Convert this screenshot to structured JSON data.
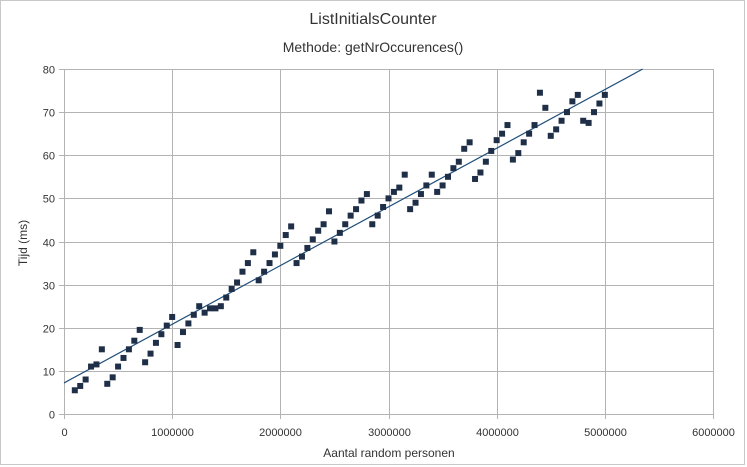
{
  "chart_data": {
    "type": "scatter",
    "title": "ListInitialsCounter",
    "subtitle": "Methode: getNrOccurences()",
    "xlabel": "Aantal random personen",
    "ylabel": "Tijd (ms)",
    "xlim": [
      0,
      6000000
    ],
    "ylim": [
      0,
      80
    ],
    "x_ticks": [
      0,
      1000000,
      2000000,
      3000000,
      4000000,
      5000000,
      6000000
    ],
    "x_tick_labels": [
      "0",
      "1000000",
      "2000000",
      "3000000",
      "4000000",
      "5000000",
      "6000000"
    ],
    "y_ticks": [
      0,
      10,
      20,
      30,
      40,
      50,
      60,
      70,
      80
    ],
    "y_tick_labels": [
      "0",
      "10",
      "20",
      "30",
      "40",
      "50",
      "60",
      "70",
      "80"
    ],
    "grid": true,
    "legend": false,
    "colors": {
      "points": "#1f2f48",
      "trendline": "#1f4e79",
      "grid": "#b3b3b3",
      "axis": "#b3b3b3"
    },
    "trendline": {
      "x": [
        0,
        5350000
      ],
      "y": [
        7.2,
        80
      ]
    },
    "points": [
      [
        100000,
        5.5
      ],
      [
        150000,
        6.5
      ],
      [
        200000,
        8
      ],
      [
        250000,
        11
      ],
      [
        300000,
        11.5
      ],
      [
        350000,
        15
      ],
      [
        400000,
        7
      ],
      [
        450000,
        8.5
      ],
      [
        500000,
        11
      ],
      [
        550000,
        13
      ],
      [
        600000,
        15
      ],
      [
        650000,
        17
      ],
      [
        700000,
        19.5
      ],
      [
        750000,
        12
      ],
      [
        800000,
        14
      ],
      [
        850000,
        16.5
      ],
      [
        900000,
        18.5
      ],
      [
        950000,
        20.5
      ],
      [
        1000000,
        22.5
      ],
      [
        1050000,
        16
      ],
      [
        1100000,
        19
      ],
      [
        1150000,
        21
      ],
      [
        1200000,
        23
      ],
      [
        1250000,
        25
      ],
      [
        1300000,
        23.5
      ],
      [
        1350000,
        24.5
      ],
      [
        1400000,
        24.5
      ],
      [
        1450000,
        25
      ],
      [
        1500000,
        27
      ],
      [
        1550000,
        29
      ],
      [
        1600000,
        30.5
      ],
      [
        1650000,
        33
      ],
      [
        1700000,
        35
      ],
      [
        1750000,
        37.5
      ],
      [
        1800000,
        31
      ],
      [
        1850000,
        33
      ],
      [
        1900000,
        35
      ],
      [
        1950000,
        37
      ],
      [
        2000000,
        39
      ],
      [
        2050000,
        41.5
      ],
      [
        2100000,
        43.5
      ],
      [
        2150000,
        35
      ],
      [
        2200000,
        36.5
      ],
      [
        2250000,
        38.5
      ],
      [
        2300000,
        40.5
      ],
      [
        2350000,
        42.5
      ],
      [
        2400000,
        44
      ],
      [
        2450000,
        47
      ],
      [
        2500000,
        40
      ],
      [
        2550000,
        42
      ],
      [
        2600000,
        44
      ],
      [
        2650000,
        46
      ],
      [
        2700000,
        47.5
      ],
      [
        2750000,
        49.5
      ],
      [
        2800000,
        51
      ],
      [
        2850000,
        44
      ],
      [
        2900000,
        46
      ],
      [
        2950000,
        48
      ],
      [
        3000000,
        50
      ],
      [
        3050000,
        51.5
      ],
      [
        3100000,
        52.5
      ],
      [
        3150000,
        55.5
      ],
      [
        3200000,
        47.5
      ],
      [
        3250000,
        49
      ],
      [
        3300000,
        51
      ],
      [
        3350000,
        53
      ],
      [
        3400000,
        55.5
      ],
      [
        3450000,
        51.5
      ],
      [
        3500000,
        53
      ],
      [
        3550000,
        55
      ],
      [
        3600000,
        57
      ],
      [
        3650000,
        58.5
      ],
      [
        3700000,
        61.5
      ],
      [
        3750000,
        63
      ],
      [
        3800000,
        54.5
      ],
      [
        3850000,
        56
      ],
      [
        3900000,
        58.5
      ],
      [
        3950000,
        61
      ],
      [
        4000000,
        63.5
      ],
      [
        4050000,
        65
      ],
      [
        4100000,
        67
      ],
      [
        4150000,
        59
      ],
      [
        4200000,
        60.5
      ],
      [
        4250000,
        63
      ],
      [
        4300000,
        65
      ],
      [
        4350000,
        67
      ],
      [
        4400000,
        74.5
      ],
      [
        4450000,
        71
      ],
      [
        4500000,
        64.5
      ],
      [
        4550000,
        66
      ],
      [
        4600000,
        68
      ],
      [
        4650000,
        70
      ],
      [
        4700000,
        72.5
      ],
      [
        4750000,
        74
      ],
      [
        4800000,
        68
      ],
      [
        4850000,
        67.5
      ],
      [
        4900000,
        70
      ],
      [
        4950000,
        72
      ],
      [
        5000000,
        74
      ]
    ]
  }
}
